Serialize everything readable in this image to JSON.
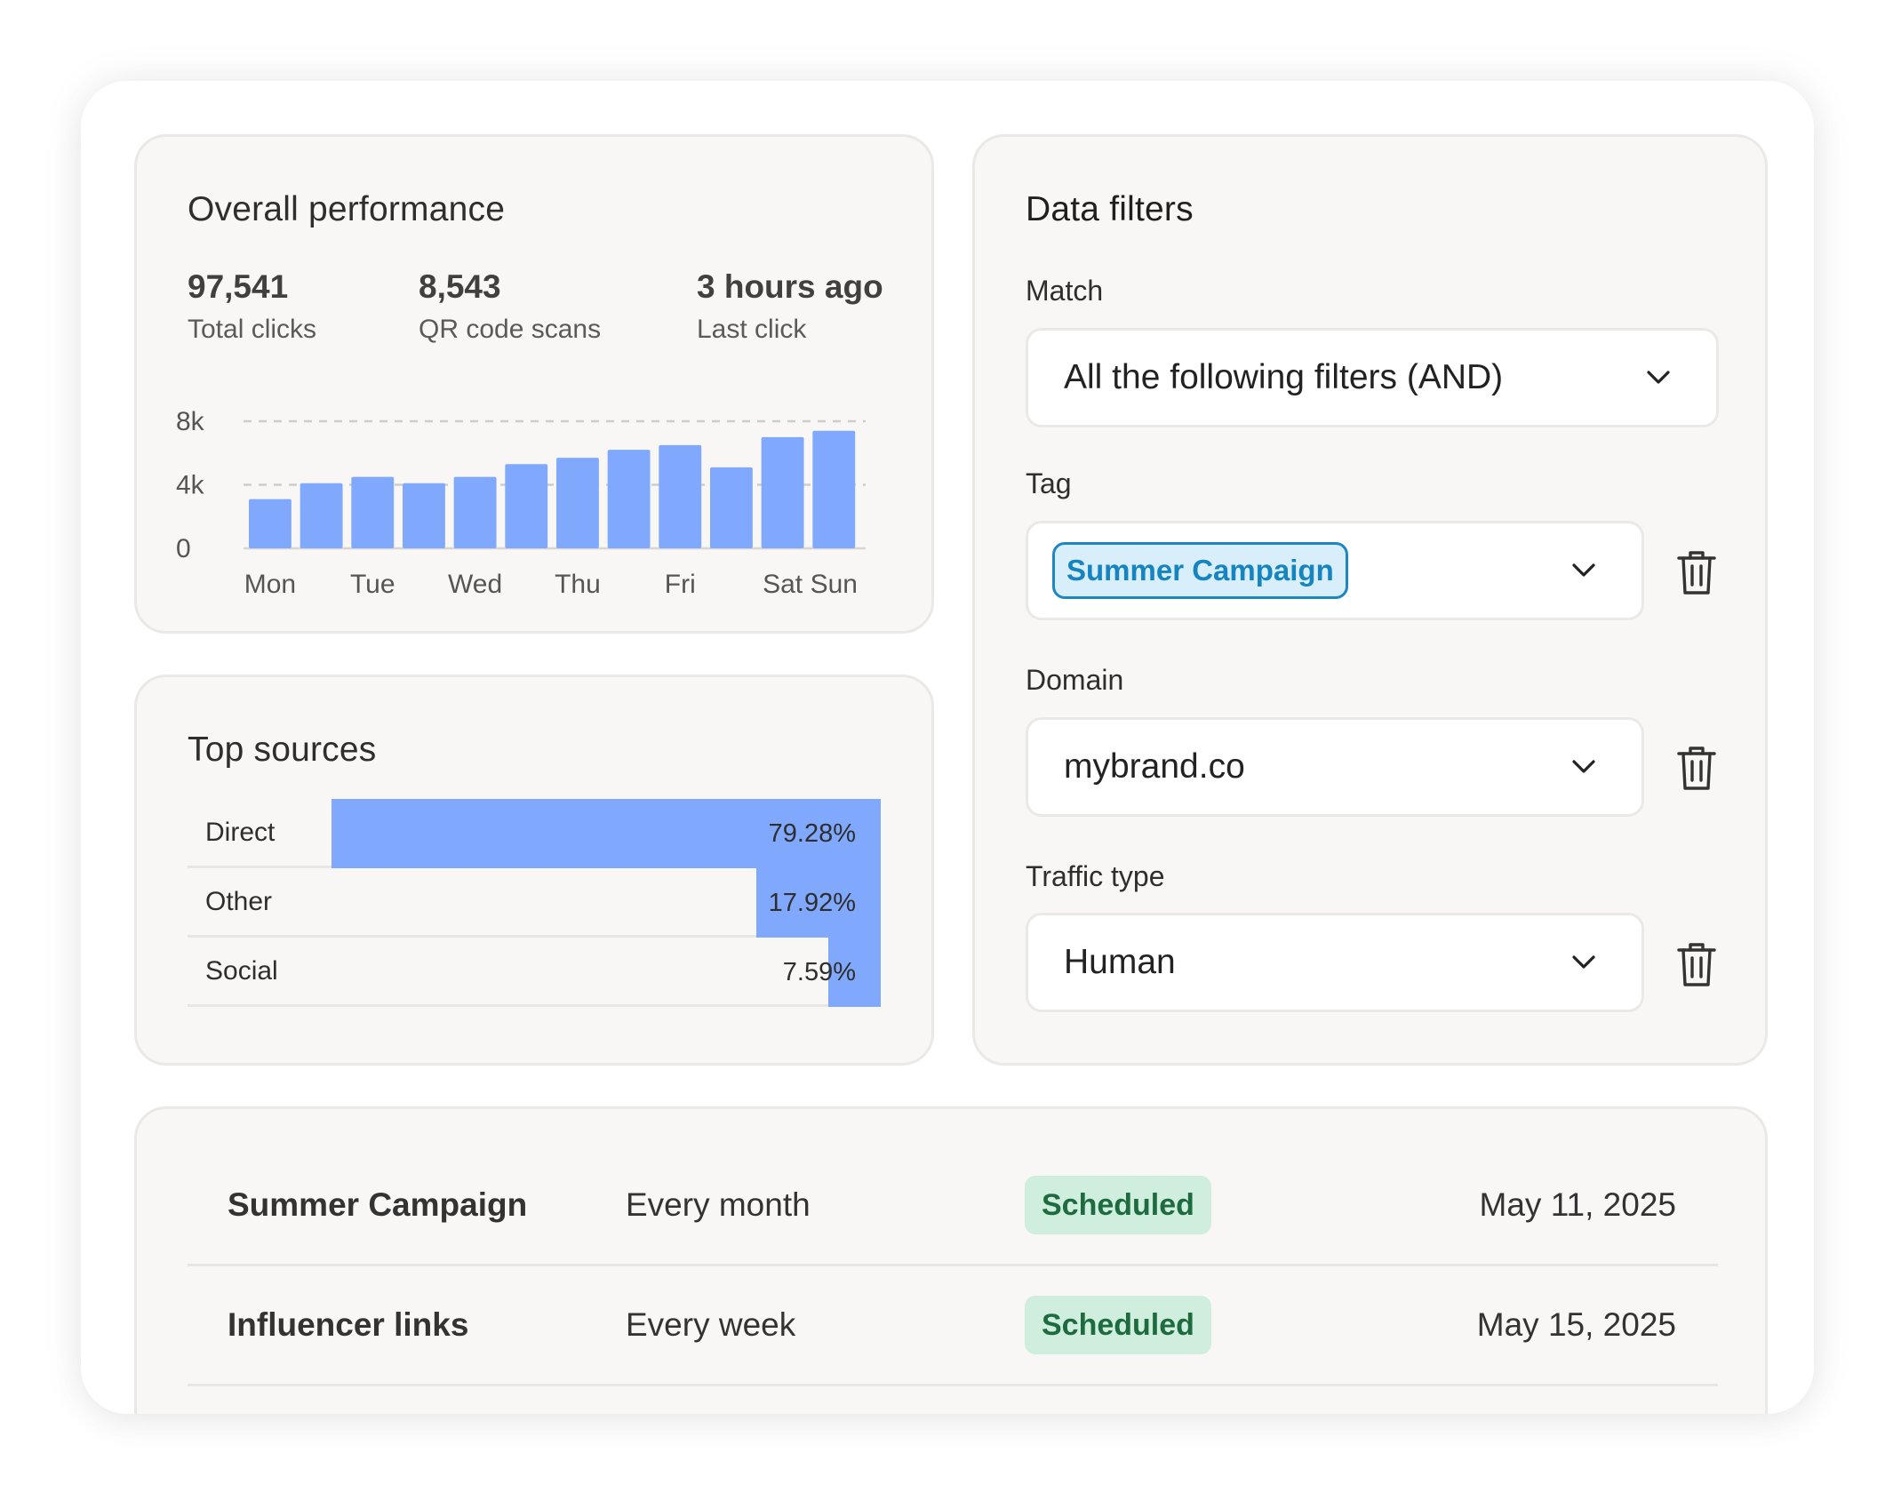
{
  "performance": {
    "title": "Overall performance",
    "stats": [
      {
        "value": "97,541",
        "label": "Total clicks"
      },
      {
        "value": "8,543",
        "label": "QR code scans"
      },
      {
        "value": "3 hours ago",
        "label": "Last click"
      }
    ]
  },
  "chart_data": {
    "type": "bar",
    "title": "",
    "xlabel": "",
    "ylabel": "",
    "categories": [
      "Mon",
      "",
      "Tue",
      "",
      "Wed",
      "",
      "Thu",
      "",
      "Fri",
      "",
      "Sat",
      "Sun"
    ],
    "values": [
      3100,
      4100,
      4500,
      4100,
      4500,
      5300,
      5700,
      6200,
      6500,
      5100,
      7000,
      7400
    ],
    "ylim": [
      0,
      8000
    ],
    "yticks": [
      "0",
      "4k",
      "8k"
    ],
    "ytick_values": [
      0,
      4000,
      8000
    ],
    "grid": "dashed horizontal",
    "bar_color": "#80a8fd"
  },
  "sources": {
    "title": "Top sources",
    "rows": [
      {
        "name": "Direct",
        "percent": "79.28%",
        "share": 0.7928
      },
      {
        "name": "Other",
        "percent": "17.92%",
        "share": 0.1792
      },
      {
        "name": "Social",
        "percent": "7.59%",
        "share": 0.0759
      }
    ]
  },
  "filters": {
    "title": "Data filters",
    "match_label": "Match",
    "match_value": "All the following filters (AND)",
    "tag_label": "Tag",
    "tag_value": "Summer Campaign",
    "domain_label": "Domain",
    "domain_value": "mybrand.co",
    "traffic_label": "Traffic type",
    "traffic_value": "Human"
  },
  "schedules": [
    {
      "name": "Summer Campaign",
      "frequency": "Every month",
      "status": "Scheduled",
      "date": "May 11, 2025"
    },
    {
      "name": "Influencer links",
      "frequency": "Every week",
      "status": "Scheduled",
      "date": "May 15, 2025"
    }
  ],
  "colors": {
    "accent_bar": "#80a8fd",
    "tag_text": "#1684c0",
    "tag_bg": "#d9eefb",
    "badge_bg": "#cfeedd",
    "badge_text": "#1e6b3f"
  },
  "icons": [
    "chevron-down-icon",
    "trash-icon"
  ]
}
